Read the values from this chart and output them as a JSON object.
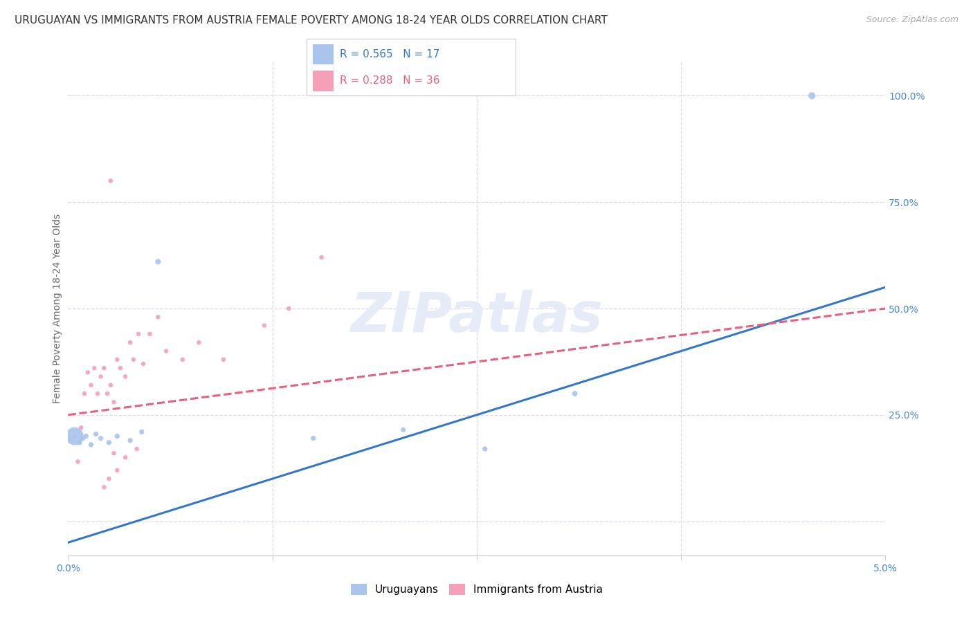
{
  "title": "URUGUAYAN VS IMMIGRANTS FROM AUSTRIA FEMALE POVERTY AMONG 18-24 YEAR OLDS CORRELATION CHART",
  "source": "Source: ZipAtlas.com",
  "ylabel": "Female Poverty Among 18-24 Year Olds",
  "xlim": [
    0.0,
    5.0
  ],
  "ylim": [
    -8.0,
    108.0
  ],
  "background_color": "#ffffff",
  "grid_color": "#d8d8e8",
  "uruguayan_color": "#aac4ee",
  "austria_color": "#f4a0b8",
  "uruguayan_line_color": "#3377cc",
  "austria_line_color": "#e86080",
  "watermark_color": "#e6ecf7",
  "title_color": "#333333",
  "source_color": "#aaaaaa",
  "tick_color": "#4488cc",
  "ylabel_color": "#666666",
  "legend_label_uruguayan": "Uruguayans",
  "legend_label_austria": "Immigrants from Austria",
  "legend_R_uru": "0.565",
  "legend_N_uru": "17",
  "legend_R_aut": "0.288",
  "legend_N_aut": "36",
  "uru_x": [
    0.04,
    0.07,
    0.09,
    0.11,
    0.14,
    0.17,
    0.2,
    0.25,
    0.3,
    0.38,
    0.45,
    0.55,
    1.5,
    2.05,
    2.55,
    3.1,
    4.55
  ],
  "uru_y": [
    20.0,
    18.5,
    19.5,
    20.0,
    18.0,
    20.5,
    19.5,
    18.5,
    20.0,
    19.0,
    21.0,
    61.0,
    19.5,
    21.5,
    17.0,
    30.0,
    100.0
  ],
  "uru_s": [
    350,
    30,
    28,
    28,
    28,
    28,
    28,
    28,
    28,
    28,
    28,
    35,
    28,
    28,
    28,
    32,
    55
  ],
  "aut_x": [
    0.04,
    0.06,
    0.08,
    0.1,
    0.12,
    0.14,
    0.16,
    0.18,
    0.2,
    0.22,
    0.24,
    0.26,
    0.28,
    0.3,
    0.32,
    0.35,
    0.38,
    0.4,
    0.43,
    0.46,
    0.5,
    0.55,
    0.6,
    0.7,
    0.8,
    0.95,
    1.2,
    1.35,
    1.55,
    0.25,
    0.22,
    0.3,
    0.28,
    0.35,
    0.42,
    0.26
  ],
  "aut_y": [
    20.0,
    14.0,
    22.0,
    30.0,
    35.0,
    32.0,
    36.0,
    30.0,
    34.0,
    36.0,
    30.0,
    32.0,
    28.0,
    38.0,
    36.0,
    34.0,
    42.0,
    38.0,
    44.0,
    37.0,
    44.0,
    48.0,
    40.0,
    38.0,
    42.0,
    38.0,
    46.0,
    50.0,
    62.0,
    10.0,
    8.0,
    12.0,
    16.0,
    15.0,
    17.0,
    80.0
  ],
  "aut_s": [
    22,
    22,
    22,
    22,
    22,
    22,
    22,
    22,
    22,
    22,
    22,
    22,
    22,
    22,
    22,
    22,
    22,
    22,
    22,
    22,
    22,
    22,
    22,
    22,
    22,
    22,
    22,
    22,
    22,
    22,
    22,
    22,
    22,
    22,
    22,
    22
  ],
  "uru_line_x0": 0.0,
  "uru_line_y0": -5.0,
  "uru_line_x1": 5.0,
  "uru_line_y1": 55.0,
  "aut_line_x0": 0.0,
  "aut_line_y0": 25.0,
  "aut_line_x1": 5.0,
  "aut_line_y1": 50.0,
  "title_fontsize": 11,
  "ylabel_fontsize": 10,
  "tick_fontsize": 10,
  "legend_fontsize": 11,
  "source_fontsize": 9
}
